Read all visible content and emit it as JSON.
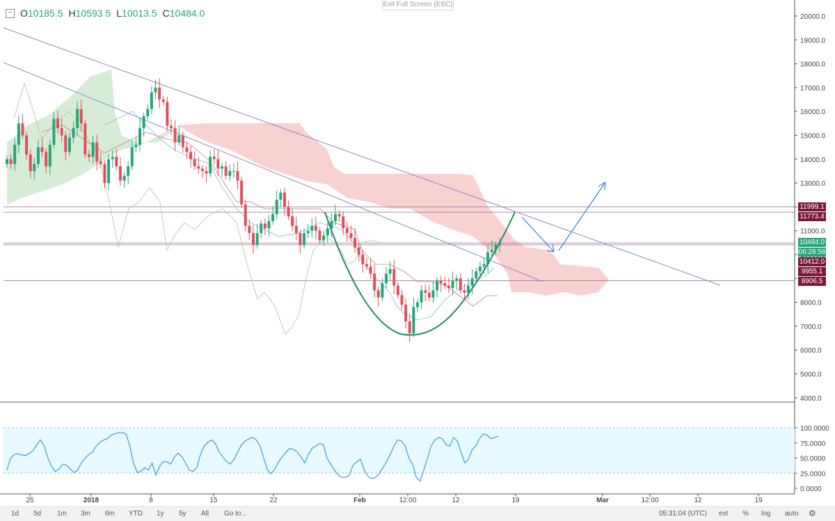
{
  "ohlc": {
    "o_label": "O",
    "o_value": "10185.5",
    "h_label": "H",
    "h_value": "10593.5",
    "l_label": "L",
    "l_value": "10013.5",
    "c_label": "C",
    "c_value": "10484.0"
  },
  "exit_fullscreen": "Exit Full Screen (ESC)",
  "price_axis": {
    "ticks": [
      "20000.0",
      "19000.0",
      "18000.0",
      "17000.0",
      "16000.0",
      "15000.0",
      "14000.0",
      "13000.0",
      "12000.0",
      "11000.0",
      "10000.0",
      "9000.0",
      "8000.0",
      "7000.0",
      "6000.0",
      "5000.0",
      "4000.0"
    ],
    "badges": [
      {
        "text": "11999.1",
        "color": "#7a1838"
      },
      {
        "text": "11773.4",
        "color": "#7a1838"
      },
      {
        "text": "10484.0",
        "color": "#26a67a"
      },
      {
        "text": "06:28:56",
        "color": "#26a67a"
      },
      {
        "text": "10412.0",
        "color": "#7a1838"
      },
      {
        "text": "9955.1",
        "color": "#7a1838"
      },
      {
        "text": "8906.5",
        "color": "#7a1838"
      }
    ]
  },
  "oscillator_axis": {
    "ticks": [
      "100.0000",
      "75.0000",
      "50.0000",
      "25.0000",
      "0.0000"
    ]
  },
  "time_axis": [
    "25",
    "2018",
    "8",
    "15",
    "22",
    "Feb",
    "12:00",
    "12",
    "19",
    "Mar",
    "12:00",
    "12",
    "19"
  ],
  "toolbar": {
    "ranges": [
      "1d",
      "5d",
      "1m",
      "3m",
      "6m",
      "YTD",
      "1y",
      "5y",
      "All"
    ],
    "goto": "Go to...",
    "clock": "05:31:04 (UTC)",
    "ext": "ext",
    "pct": "%",
    "log": "log",
    "auto": "auto",
    "settings_icon": "gear-icon"
  },
  "colors": {
    "up": "#26a67a",
    "down": "#e0505a",
    "cloud_red": "#f6c6c6",
    "cloud_green": "#c8e6c8",
    "trendline": "#8c8cc0",
    "cup": "#1e8a6a",
    "arrow": "#3a7fd0",
    "oscillator": "#3f9ad8",
    "osc_band": "#e6faff"
  }
}
